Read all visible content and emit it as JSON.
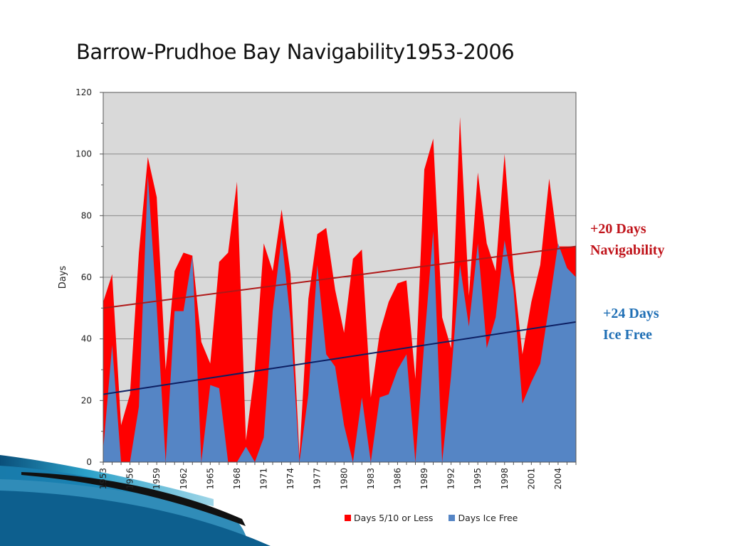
{
  "slide": {
    "title": "Barrow-Prudhoe Bay Navigability1953-2006"
  },
  "annotations": {
    "navigability_line1": "+20 Days",
    "navigability_line2": "Navigability",
    "icefree_line1": "+24 Days",
    "icefree_line2": "Ice Free"
  },
  "legend": {
    "series_a": "Days 5/10 or Less",
    "series_b": "Days Ice Free"
  },
  "colors": {
    "series_a": "#ff0000",
    "series_b": "#5585c5",
    "trend_a": "#b01818",
    "trend_b": "#0d1f63",
    "plot_bg": "#d9d9d9",
    "annot_nav": "#c0141b",
    "annot_ice": "#1f6fb5"
  },
  "chart_data": {
    "type": "area",
    "title": "",
    "xlabel": "",
    "ylabel": "Days",
    "ylim": [
      0,
      120
    ],
    "yticks": [
      0,
      20,
      40,
      60,
      80,
      100,
      120
    ],
    "xtick_labels": [
      "1953",
      "1956",
      "1959",
      "1962",
      "1965",
      "1968",
      "1971",
      "1974",
      "1977",
      "1980",
      "1983",
      "1986",
      "1989",
      "1992",
      "1995",
      "1998",
      "2001",
      "2004"
    ],
    "grid": true,
    "legend_position": "bottom",
    "x": [
      1953,
      1954,
      1955,
      1956,
      1957,
      1958,
      1959,
      1960,
      1961,
      1962,
      1963,
      1964,
      1965,
      1966,
      1967,
      1968,
      1969,
      1970,
      1971,
      1972,
      1973,
      1974,
      1975,
      1976,
      1977,
      1978,
      1979,
      1980,
      1981,
      1982,
      1983,
      1984,
      1985,
      1986,
      1987,
      1988,
      1989,
      1990,
      1991,
      1992,
      1993,
      1994,
      1995,
      1996,
      1997,
      1998,
      1999,
      2000,
      2001,
      2002,
      2003,
      2004,
      2005,
      2006
    ],
    "series": [
      {
        "name": "Days 5/10 or Less",
        "values": [
          52,
          61,
          12,
          22,
          68,
          99,
          86,
          30,
          62,
          68,
          67,
          39,
          32,
          65,
          68,
          91,
          7,
          30,
          71,
          62,
          82,
          61,
          2,
          53,
          74,
          76,
          56,
          42,
          66,
          69,
          21,
          42,
          52,
          58,
          59,
          27,
          95,
          105,
          47,
          37,
          112,
          54,
          94,
          71,
          62,
          100,
          62,
          35,
          52,
          64,
          92,
          70,
          70,
          70
        ]
      },
      {
        "name": "Days Ice Free",
        "values": [
          4,
          38,
          0,
          0,
          18,
          93,
          50,
          0,
          49,
          49,
          67,
          0,
          25,
          24,
          0,
          0,
          5,
          0,
          8,
          49,
          73,
          46,
          0,
          22,
          64,
          35,
          31,
          12,
          0,
          21,
          0,
          21,
          22,
          30,
          35,
          0,
          39,
          75,
          0,
          28,
          64,
          44,
          71,
          37,
          47,
          72,
          56,
          19,
          26,
          32,
          51,
          71,
          63,
          60
        ]
      }
    ],
    "trendlines": [
      {
        "name": "+20 Days Navigability",
        "start": 50,
        "end": 70
      },
      {
        "name": "+24 Days Ice Free",
        "start": 22,
        "end": 45.5
      }
    ]
  }
}
